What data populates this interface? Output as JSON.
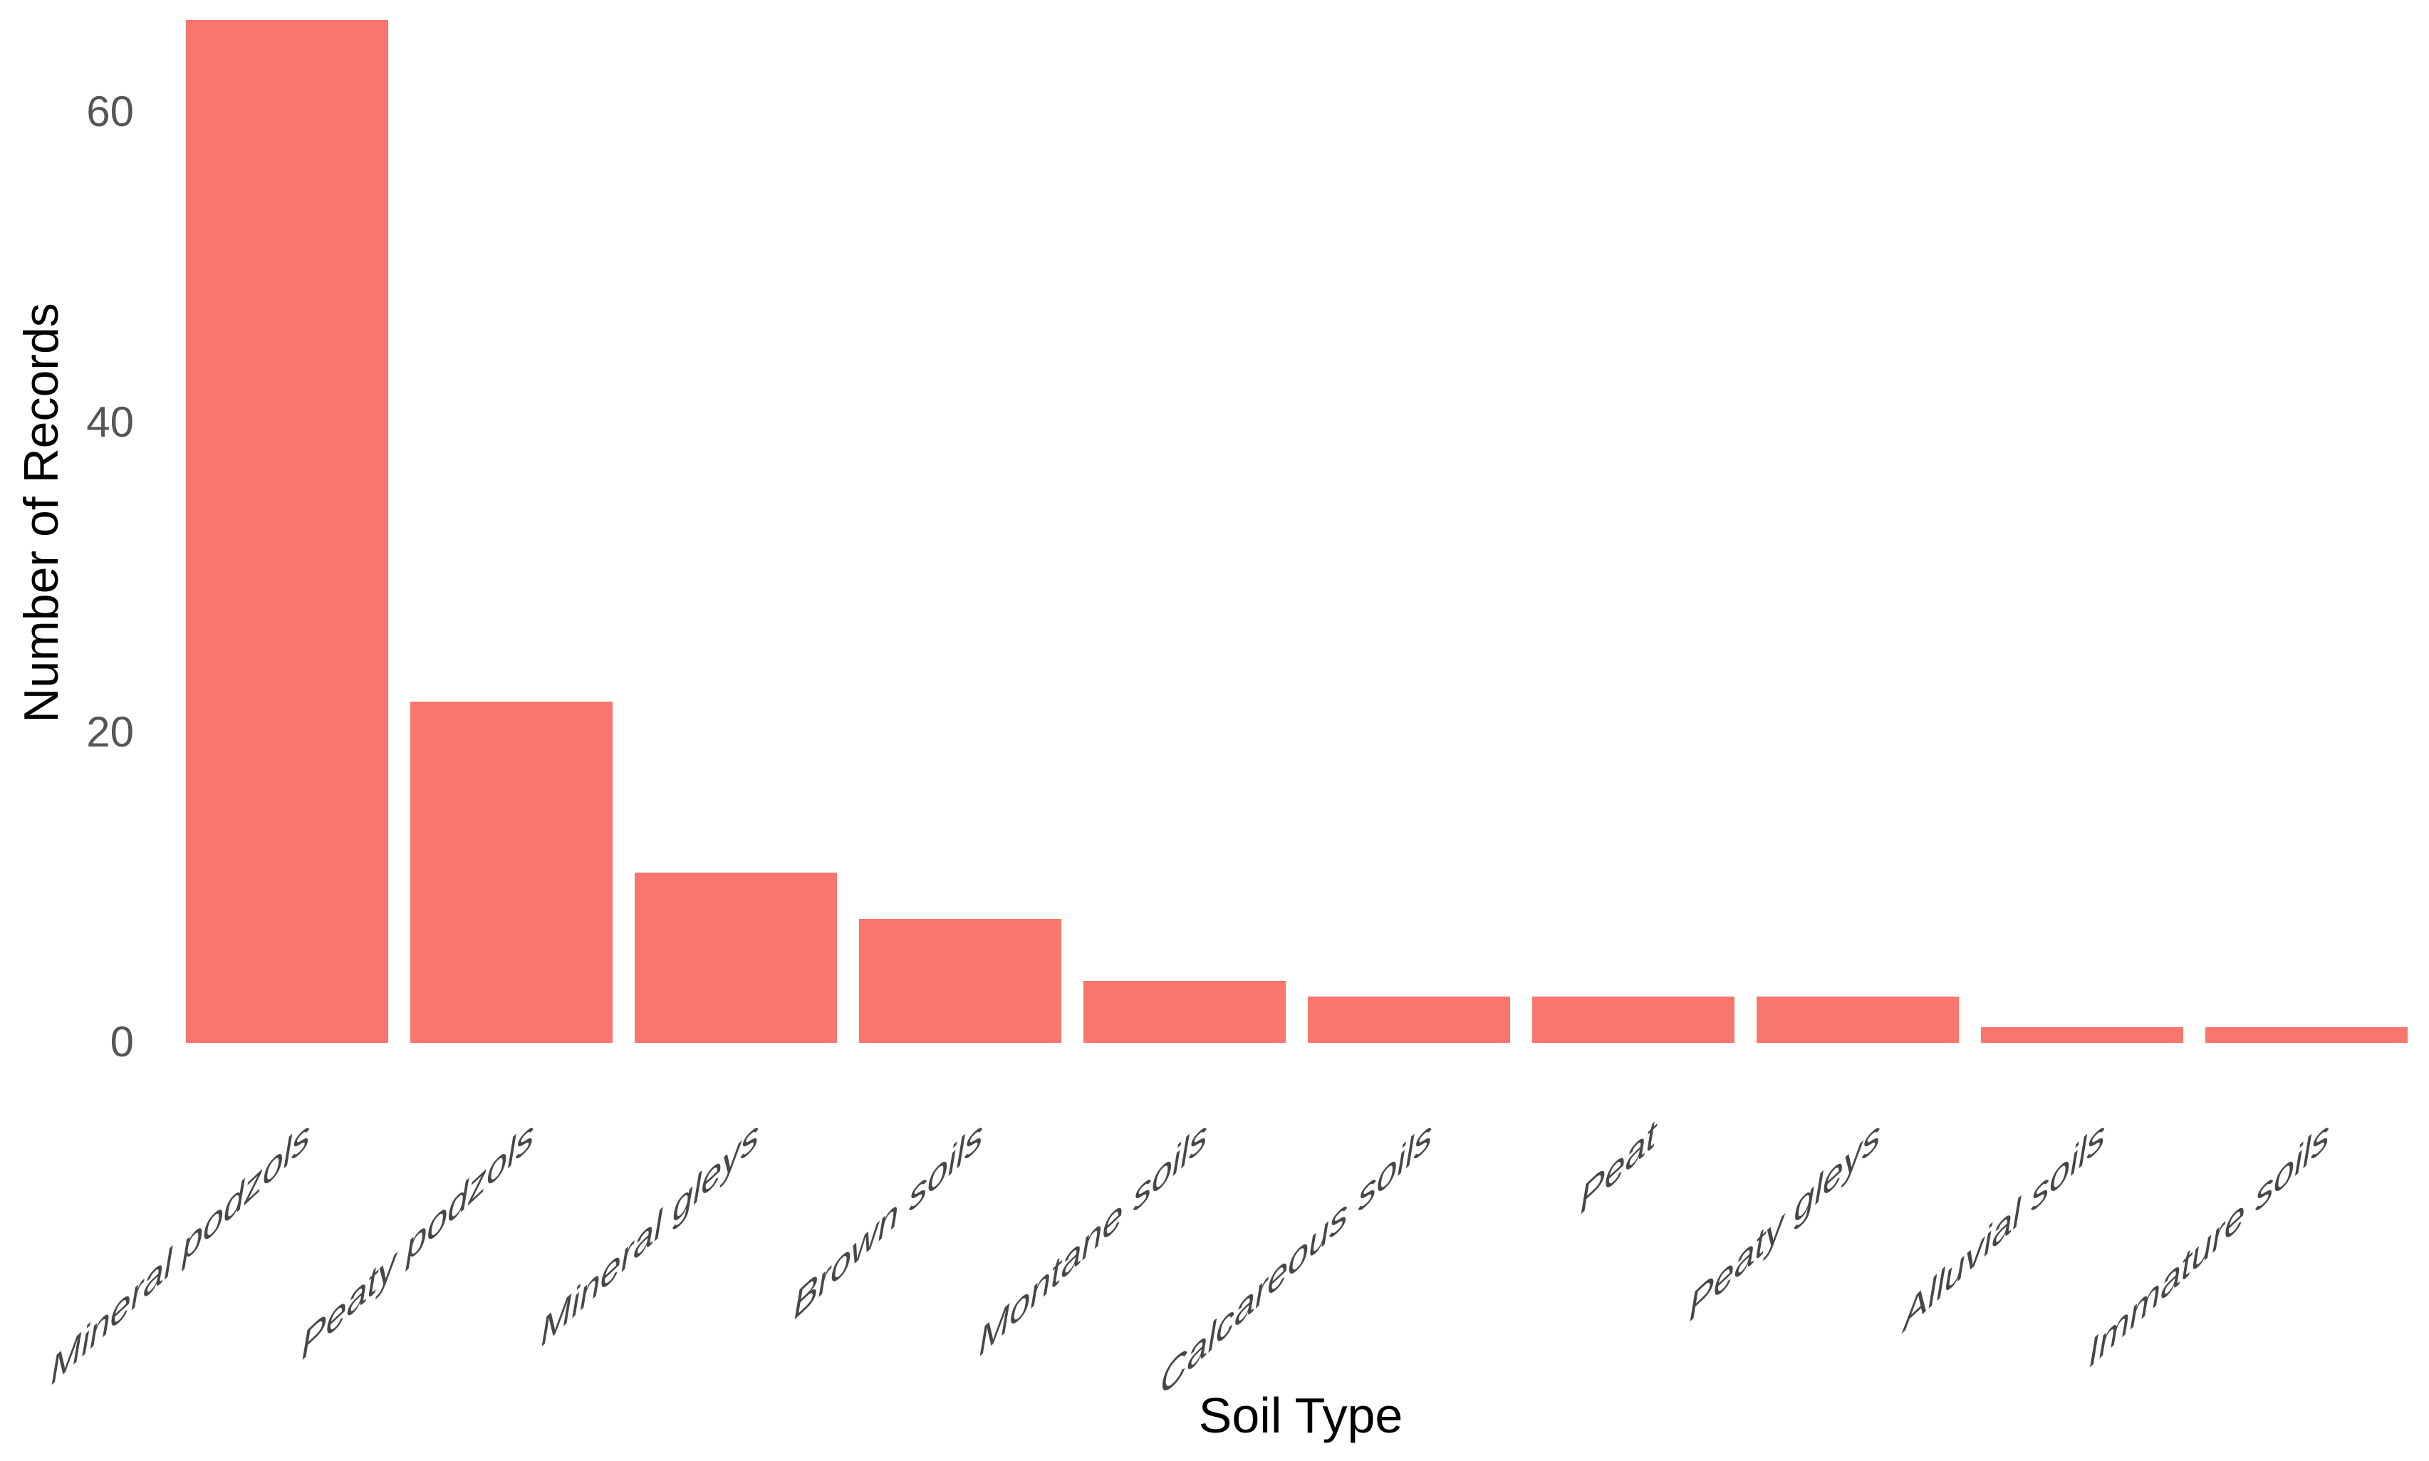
{
  "chart_data": {
    "type": "bar",
    "categories": [
      "Mineral podzols",
      "Peaty podzols",
      "Mineral gleys",
      "Brown soils",
      "Montane soils",
      "Calcareous soils",
      "Peat",
      "Peaty gleys",
      "Alluvial soils",
      "Immature soils"
    ],
    "values": [
      66,
      22,
      11,
      8,
      4,
      3,
      3,
      3,
      1,
      1
    ],
    "title": "",
    "xlabel": "Soil Type",
    "ylabel": "Number of Records",
    "yticks": [
      0,
      20,
      40,
      60
    ],
    "ylim": [
      0,
      67
    ],
    "grid": false,
    "legend": false,
    "bar_color": "#F8766D",
    "y_tick_label_color": "#555555",
    "x_tick_label_color": "#474747",
    "axis_title_color": "#000000",
    "background_color": "#ffffff"
  }
}
